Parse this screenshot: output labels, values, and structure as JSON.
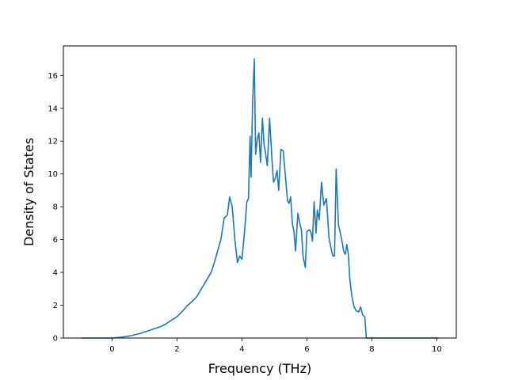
{
  "chart_data": {
    "type": "line",
    "title": "",
    "xlabel": "Frequency (THz)",
    "ylabel": "Density of States",
    "xlim": [
      -1.5,
      10.6
    ],
    "ylim": [
      0,
      17.8
    ],
    "xticks": [
      0,
      2,
      4,
      6,
      8,
      10
    ],
    "yticks": [
      0,
      2,
      4,
      6,
      8,
      10,
      12,
      14,
      16
    ],
    "xtick_labels": [
      "0",
      "2",
      "4",
      "6",
      "8",
      "10"
    ],
    "ytick_labels": [
      "0",
      "2",
      "4",
      "6",
      "8",
      "10",
      "12",
      "14",
      "16"
    ],
    "grid": false,
    "legend": "none",
    "line_color": "#1f77b4",
    "series": [
      {
        "x": [
          -0.95,
          0.0,
          0.3,
          0.6,
          0.9,
          1.2,
          1.5,
          1.65,
          1.8,
          2.0,
          2.2,
          2.3,
          2.45,
          2.6,
          2.75,
          2.9,
          3.05,
          3.15,
          3.25,
          3.35,
          3.45,
          3.55,
          3.62,
          3.7,
          3.78,
          3.86,
          3.93,
          4.0,
          4.08,
          4.15,
          4.2,
          4.25,
          4.28,
          4.33,
          4.38,
          4.42,
          4.47,
          4.52,
          4.57,
          4.63,
          4.68,
          4.73,
          4.78,
          4.85,
          4.92,
          4.97,
          5.02,
          5.08,
          5.13,
          5.2,
          5.27,
          5.35,
          5.4,
          5.45,
          5.5,
          5.55,
          5.6,
          5.65,
          5.72,
          5.78,
          5.83,
          5.88,
          5.95,
          6.0,
          6.08,
          6.13,
          6.17,
          6.22,
          6.28,
          6.32,
          6.38,
          6.45,
          6.52,
          6.6,
          6.68,
          6.75,
          6.8,
          6.85,
          6.9,
          6.97,
          7.02,
          7.08,
          7.13,
          7.18,
          7.23,
          7.28,
          7.32,
          7.38,
          7.45,
          7.52,
          7.6,
          7.65,
          7.72,
          7.78,
          7.83,
          7.9,
          7.96,
          8.02,
          8.1,
          8.18,
          8.25,
          8.3,
          8.36,
          8.42,
          8.48,
          8.53,
          8.6,
          8.68,
          8.76,
          8.84,
          8.9,
          8.96,
          9.03,
          9.08,
          9.13,
          9.18,
          9.3,
          10.05
        ],
        "y": [
          0,
          0,
          0.05,
          0.15,
          0.3,
          0.5,
          0.7,
          0.85,
          1.05,
          1.3,
          1.7,
          1.95,
          2.2,
          2.5,
          3.0,
          3.5,
          4.0,
          4.6,
          5.3,
          6.0,
          7.3,
          7.5,
          8.6,
          8.0,
          6.0,
          4.6,
          5.0,
          4.8,
          6.5,
          8.3,
          8.5,
          12.3,
          9.8,
          14.5,
          17.0,
          11.2,
          12.1,
          12.5,
          10.7,
          13.4,
          11.8,
          11.2,
          10.5,
          13.4,
          11.0,
          9.5,
          9.7,
          10.2,
          9.0,
          11.5,
          11.4,
          9.6,
          8.4,
          8.2,
          8.6,
          7.0,
          6.5,
          5.3,
          7.6,
          7.0,
          6.6,
          5.0,
          4.3,
          6.5,
          6.6,
          6.4,
          5.9,
          8.3,
          6.4,
          7.8,
          7.2,
          9.5,
          8.1,
          8.5,
          6.1,
          5.4,
          5.0,
          5.0,
          10.3,
          6.9,
          6.5,
          5.9,
          5.3,
          5.1,
          5.7,
          5.0,
          3.6,
          2.6,
          1.9,
          1.65,
          1.6,
          1.9,
          1.4,
          1.3,
          0,
          0,
          0,
          0,
          0,
          0,
          0,
          0,
          0,
          0,
          0,
          0,
          0,
          0,
          0,
          0,
          0,
          0,
          0,
          0,
          0,
          0,
          0,
          0
        ]
      }
    ]
  }
}
